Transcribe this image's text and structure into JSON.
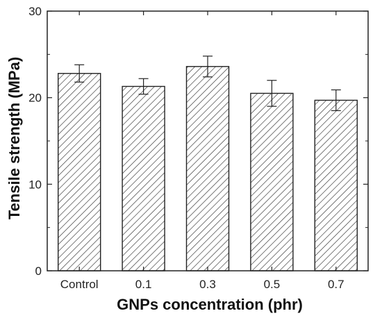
{
  "chart_data": {
    "type": "bar",
    "categories": [
      "Control",
      "0.1",
      "0.3",
      "0.5",
      "0.7"
    ],
    "values": [
      22.8,
      21.3,
      23.6,
      20.5,
      19.7
    ],
    "errors": [
      1.0,
      0.9,
      1.2,
      1.5,
      1.2
    ],
    "xlabel": "GNPs concentration (phr)",
    "ylabel": "Tensile strength (MPa)",
    "ylim": [
      0,
      30
    ],
    "yticks": [
      0,
      10,
      20,
      30
    ],
    "ytick_labels": [
      "0",
      "10",
      "20",
      "30"
    ],
    "bar_fill": "hatched",
    "bar_edge_color": "#222222",
    "grid": false,
    "legend": "none"
  }
}
